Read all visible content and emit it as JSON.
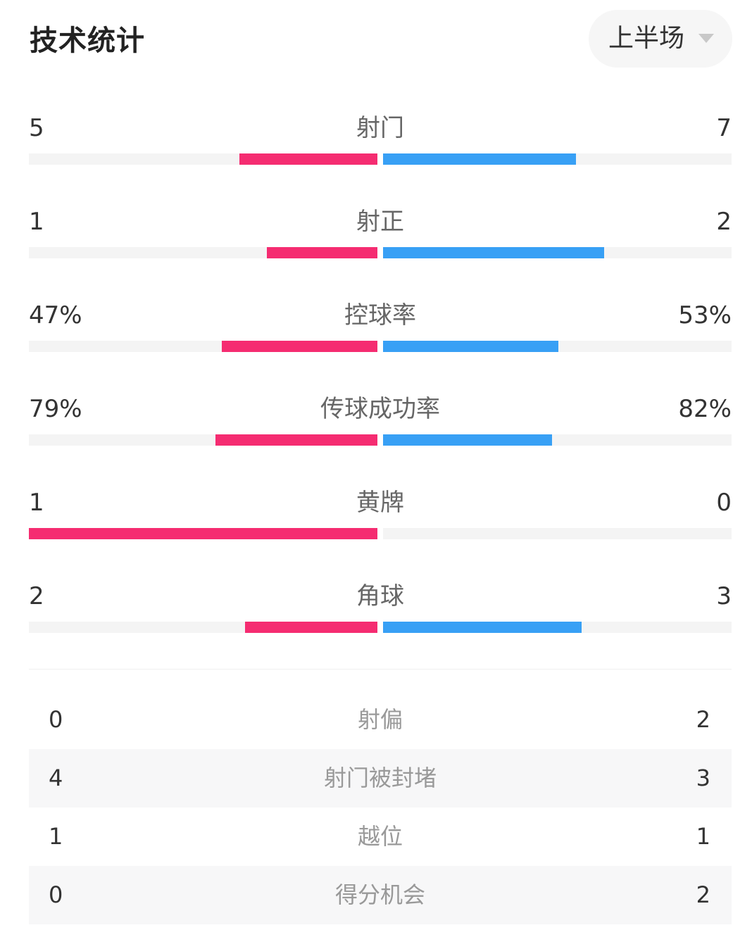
{
  "header": {
    "title": "技术统计",
    "period": "上半场",
    "period_icon": "caret-down-icon"
  },
  "colors": {
    "home": "#f52c71",
    "away": "#38a0f5",
    "track": "#f4f4f4"
  },
  "bar_stats": [
    {
      "label": "射门",
      "home": "5",
      "away": "7",
      "home_share": 0.417,
      "away_share": 0.583
    },
    {
      "label": "射正",
      "home": "1",
      "away": "2",
      "home_share": 0.333,
      "away_share": 0.667
    },
    {
      "label": "控球率",
      "home": "47%",
      "away": "53%",
      "home_share": 0.47,
      "away_share": 0.53
    },
    {
      "label": "传球成功率",
      "home": "79%",
      "away": "82%",
      "home_share": 0.49,
      "away_share": 0.51
    },
    {
      "label": "黄牌",
      "home": "1",
      "away": "0",
      "home_share": 1.0,
      "away_share": 0.0
    },
    {
      "label": "角球",
      "home": "2",
      "away": "3",
      "home_share": 0.4,
      "away_share": 0.6
    }
  ],
  "table_stats": [
    {
      "label": "射偏",
      "home": "0",
      "away": "2"
    },
    {
      "label": "射门被封堵",
      "home": "4",
      "away": "3"
    },
    {
      "label": "越位",
      "home": "1",
      "away": "1"
    },
    {
      "label": "得分机会",
      "home": "0",
      "away": "2"
    }
  ]
}
